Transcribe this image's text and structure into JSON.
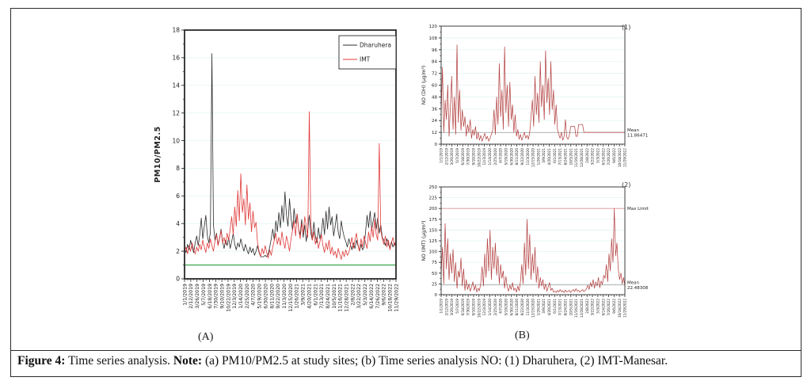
{
  "figure": {
    "caption": {
      "prefix": "Figure 4:",
      "text": " Time series analysis. ",
      "note_label": "Note:",
      "note_text": " (a) PM10/PM2.5 at study sites; (b) Time series analysis NO: (1) Dharuhera, (2) IMT-Manesar."
    },
    "panel_labels": {
      "a": "(A)",
      "b": "(B)"
    }
  },
  "chart_data": [
    {
      "id": "pm-ratio",
      "type": "line",
      "title": "",
      "ylabel": "PM10/PM2.5",
      "xlabel": "",
      "ylim": [
        0,
        18
      ],
      "yticks": [
        0,
        2,
        4,
        6,
        8,
        10,
        12,
        14,
        16,
        18
      ],
      "grid": true,
      "legend_position": "top-right",
      "x_labels": [
        "1/1/2019",
        "2/12/2019",
        "3/26/2019",
        "5/7/2019",
        "6/18/2019",
        "7/30/2019",
        "9/10/2019",
        "10/22/2019",
        "12/3/2019",
        "1/14/2020",
        "2/25/2020",
        "4/7/2020",
        "5/19/2020",
        "6/30/2020",
        "8/11/2020",
        "9/22/2020",
        "11/3/2020",
        "12/15/2020",
        "1/26/2021",
        "3/9/2021",
        "4/20/2021",
        "6/1/2021",
        "7/13/2021",
        "8/24/2021",
        "10/5/2021",
        "11/16/2021",
        "12/28/2021",
        "2/8/2022",
        "3/22/2022",
        "5/3/2022",
        "6/14/2022",
        "7/26/2022",
        "9/6/2022",
        "10/18/2022",
        "11/29/2022"
      ],
      "reference_lines": [
        {
          "y": 1,
          "color": "#2e9e40"
        }
      ],
      "series": [
        {
          "name": "Dharuhera",
          "color": "#2b2b2b",
          "values": [
            2.2,
            1.9,
            2.5,
            2.1,
            2.8,
            2.3,
            1.9,
            2.6,
            3.1,
            2.4,
            3.2,
            4.4,
            2.9,
            3.8,
            4.6,
            3.1,
            2.6,
            3.4,
            16.3,
            3.9,
            2.8,
            3.3,
            2.5,
            2.9,
            3.6,
            2.7,
            2.2,
            2.8,
            2.4,
            3.0,
            2.2,
            2.7,
            3.3,
            2.5,
            2.1,
            2.6,
            2.3,
            2.9,
            2.4,
            2.0,
            2.5,
            2.1,
            1.8,
            2.3,
            1.9,
            2.2,
            1.7,
            2.0,
            2.4,
            1.9,
            1.6,
            1.6,
            1.6,
            1.7,
            1.6,
            1.8,
            2.3,
            2.9,
            3.6,
            2.8,
            4.2,
            3.4,
            4.8,
            3.7,
            5.3,
            4.1,
            6.3,
            4.6,
            3.8,
            5.8,
            4.4,
            3.5,
            5.1,
            4.0,
            4.7,
            3.6,
            3.2,
            4.3,
            3.0,
            3.9,
            2.7,
            3.5,
            4.6,
            3.3,
            2.8,
            4.1,
            3.1,
            2.6,
            3.7,
            2.9,
            3.4,
            4.4,
            3.2,
            4.9,
            3.6,
            5.2,
            3.9,
            4.5,
            3.1,
            3.8,
            4.7,
            3.4,
            2.9,
            4.2,
            3.5,
            3.0,
            2.7,
            2.3,
            2.9,
            2.5,
            2.1,
            2.6,
            2.2,
            2.8,
            2.4,
            2.0,
            2.5,
            2.1,
            2.3,
            3.4,
            4.6,
            3.7,
            4.9,
            3.5,
            4.2,
            4.8,
            3.6,
            4.4,
            3.3,
            3.9,
            3.0,
            2.8,
            2.4,
            2.9,
            2.5,
            2.2,
            2.7,
            2.3,
            2.6,
            2.4
          ]
        },
        {
          "name": "IMT",
          "color": "#e03a3a",
          "values": [
            1.9,
            2.3,
            1.8,
            2.4,
            2.0,
            2.6,
            2.1,
            1.8,
            2.3,
            2.0,
            2.5,
            2.1,
            2.8,
            2.3,
            1.9,
            2.6,
            2.2,
            2.9,
            2.4,
            2.0,
            2.7,
            3.2,
            2.4,
            2.9,
            3.5,
            2.6,
            3.0,
            2.5,
            3.3,
            2.8,
            3.6,
            4.5,
            3.2,
            5.2,
            3.8,
            6.4,
            4.2,
            7.6,
            4.8,
            5.8,
            3.9,
            6.8,
            4.3,
            5.5,
            3.4,
            4.9,
            3.7,
            4.1,
            2.6,
            2.0,
            1.6,
            2.2,
            1.8,
            2.4,
            1.9,
            1.5,
            2.1,
            1.7,
            2.3,
            2.8,
            3.3,
            2.5,
            3.0,
            2.4,
            3.4,
            2.7,
            2.2,
            3.1,
            2.6,
            2.0,
            2.9,
            3.5,
            4.2,
            3.1,
            4.7,
            3.6,
            2.9,
            4.0,
            3.3,
            4.5,
            3.8,
            3.0,
            12.1,
            4.1,
            2.8,
            3.4,
            2.5,
            3.0,
            2.2,
            2.7,
            3.2,
            2.4,
            1.9,
            2.6,
            2.1,
            2.8,
            1.8,
            2.3,
            1.7,
            2.0,
            1.5,
            2.2,
            1.8,
            1.4,
            2.0,
            1.6,
            2.1,
            1.7,
            1.9,
            2.4,
            3.0,
            2.2,
            2.8,
            3.3,
            2.5,
            2.0,
            2.9,
            2.3,
            3.1,
            2.6,
            2.2,
            3.4,
            2.7,
            3.8,
            3.0,
            4.3,
            3.2,
            2.8,
            9.8,
            3.5,
            2.9,
            2.5,
            3.1,
            2.3,
            2.8,
            2.1,
            2.6,
            3.0,
            2.4,
            2.7
          ]
        }
      ]
    },
    {
      "id": "no-dh",
      "type": "line",
      "corner_label": "(1)",
      "ylabel": "NO (DH) (µg/m³)",
      "xlabel": "",
      "ylim": [
        0,
        120
      ],
      "yticks": [
        0,
        12,
        24,
        36,
        48,
        60,
        72,
        84,
        96,
        108,
        120
      ],
      "grid": true,
      "x_labels": [
        "1/1/2019",
        "2/12/2019",
        "3/26/2019",
        "5/7/2019",
        "6/18/2019",
        "7/30/2019",
        "9/10/2019",
        "10/22/2019",
        "12/3/2019",
        "1/14/2020",
        "2/25/2020",
        "4/7/2020",
        "5/19/2020",
        "6/30/2020",
        "8/11/2020",
        "9/22/2020",
        "11/3/2020",
        "12/15/2020",
        "1/26/2021",
        "3/9/2021",
        "4/20/2021",
        "6/1/2021",
        "7/13/2021",
        "8/24/2021",
        "10/5/2021",
        "11/16/2021",
        "12/28/2021",
        "2/8/2022",
        "3/22/2022",
        "5/3/2022",
        "6/14/2022",
        "7/26/2022",
        "9/6/2022",
        "10/18/2022",
        "11/29/2022"
      ],
      "annotations": [
        {
          "kind": "mean",
          "label": "Mean",
          "value_text": "11.86471",
          "y": 11.86471,
          "text_color": "#4f7fbf",
          "line_color": "#9a9a9a"
        }
      ],
      "series": [
        {
          "name": "NO DH",
          "color": "#b23b3b",
          "values": [
            30,
            78,
            12,
            45,
            25,
            60,
            8,
            38,
            69,
            15,
            48,
            10,
            101,
            22,
            55,
            14,
            35,
            18,
            28,
            8,
            20,
            12,
            25,
            6,
            15,
            9,
            18,
            5,
            12,
            4,
            9,
            3,
            7,
            11,
            5,
            8,
            3,
            6,
            10,
            14,
            35,
            10,
            48,
            20,
            82,
            28,
            55,
            15,
            99,
            32,
            60,
            18,
            63,
            25,
            40,
            12,
            30,
            8,
            15,
            5,
            10,
            4,
            8,
            12,
            6,
            9,
            5,
            12,
            28,
            45,
            18,
            69,
            30,
            52,
            22,
            84,
            38,
            60,
            25,
            95,
            42,
            67,
            30,
            84,
            35,
            55,
            20,
            40,
            15,
            10,
            6,
            12,
            4,
            8,
            25,
            7,
            5,
            9,
            18,
            18,
            18,
            18,
            8,
            8,
            20,
            20,
            20,
            20,
            12,
            12,
            12,
            12,
            12,
            12,
            12,
            12,
            12,
            12,
            12,
            12,
            12,
            12,
            12,
            12,
            12,
            12,
            12,
            12,
            12,
            12,
            12,
            12,
            12,
            12,
            12,
            12,
            12,
            12,
            12,
            12
          ]
        }
      ]
    },
    {
      "id": "no-imt",
      "type": "line",
      "corner_label": "(2)",
      "ylabel": "NO (IMT) (µg/m³)",
      "xlabel": "",
      "ylim": [
        0,
        250
      ],
      "yticks": [
        0,
        25,
        50,
        75,
        100,
        125,
        150,
        175,
        200,
        225,
        250
      ],
      "grid": true,
      "x_labels": [
        "1/1/2019",
        "2/12/2019",
        "3/26/2019",
        "5/7/2019",
        "6/18/2019",
        "7/30/2019",
        "9/10/2019",
        "10/22/2019",
        "12/3/2019",
        "1/14/2020",
        "2/25/2020",
        "4/7/2020",
        "5/19/2020",
        "6/30/2020",
        "8/11/2020",
        "9/22/2020",
        "11/3/2020",
        "12/15/2020",
        "1/26/2021",
        "3/9/2021",
        "4/20/2021",
        "6/1/2021",
        "7/13/2021",
        "8/24/2021",
        "10/5/2021",
        "11/16/2021",
        "12/28/2021",
        "2/8/2022",
        "3/22/2022",
        "5/3/2022",
        "6/14/2022",
        "7/26/2022",
        "9/6/2022",
        "10/18/2022",
        "11/29/2022"
      ],
      "annotations": [
        {
          "kind": "limit",
          "label": "Max Limit",
          "value_text": "",
          "y": 200,
          "text_color": "#c23a3a",
          "line_color": "#e09090"
        },
        {
          "kind": "mean",
          "label": "Mean",
          "value_text": "22.48308",
          "y": 22.48308,
          "text_color": "#4f7fbf",
          "line_color": "#9a9a9a"
        }
      ],
      "series": [
        {
          "name": "NO IMT",
          "color": "#b23b3b",
          "values": [
            45,
            110,
            25,
            165,
            60,
            130,
            35,
            95,
            50,
            105,
            30,
            75,
            15,
            55,
            40,
            85,
            20,
            60,
            10,
            35,
            12,
            25,
            8,
            18,
            30,
            10,
            22,
            6,
            15,
            9,
            28,
            65,
            20,
            95,
            40,
            130,
            55,
            150,
            35,
            110,
            60,
            120,
            45,
            90,
            25,
            70,
            38,
            55,
            15,
            42,
            18,
            8,
            22,
            12,
            28,
            10,
            15,
            6,
            20,
            9,
            30,
            70,
            25,
            120,
            45,
            175,
            60,
            140,
            35,
            95,
            50,
            110,
            28,
            65,
            15,
            40,
            20,
            35,
            12,
            25,
            8,
            18,
            28,
            10,
            15,
            6,
            8,
            5,
            10,
            6,
            12,
            7,
            9,
            5,
            11,
            6,
            8,
            10,
            5,
            9,
            12,
            7,
            14,
            8,
            10,
            6,
            9,
            12,
            7,
            10,
            14,
            22,
            12,
            28,
            18,
            35,
            15,
            30,
            20,
            40,
            16,
            32,
            24,
            45,
            38,
            70,
            30,
            95,
            55,
            130,
            75,
            200,
            90,
            120,
            60,
            35,
            50,
            25,
            40,
            20
          ]
        }
      ]
    }
  ]
}
